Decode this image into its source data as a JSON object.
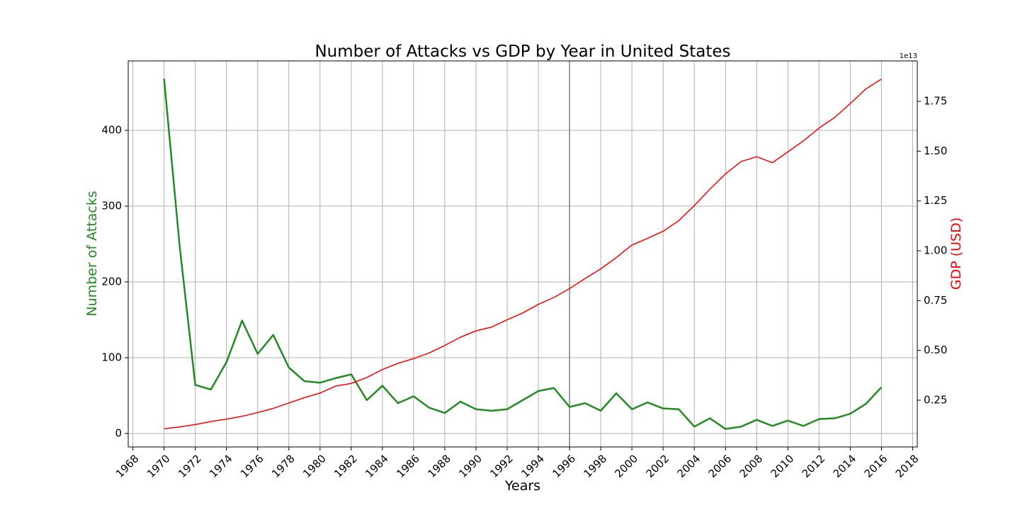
{
  "chart_data": {
    "type": "line",
    "title": "Number of Attacks vs GDP by Year in United States",
    "x_label": "Years",
    "y_label": "Number of Attacks",
    "y2_label": "GDP (USD)",
    "y2_offset": "1e13",
    "x": [
      1970,
      1971,
      1972,
      1973,
      1974,
      1975,
      1976,
      1977,
      1978,
      1979,
      1980,
      1981,
      1982,
      1983,
      1984,
      1985,
      1986,
      1987,
      1988,
      1989,
      1990,
      1991,
      1992,
      1993,
      1994,
      1995,
      1996,
      1997,
      1998,
      1999,
      2000,
      2001,
      2002,
      2003,
      2004,
      2005,
      2006,
      2007,
      2008,
      2009,
      2010,
      2011,
      2012,
      2013,
      2014,
      2015,
      2016
    ],
    "series": [
      {
        "color": "#228b22",
        "values": [
          468,
          247,
          64,
          58,
          94,
          149,
          105,
          130,
          87,
          69,
          67,
          73,
          78,
          44,
          63,
          40,
          49,
          34,
          27,
          42,
          32,
          30,
          32,
          44,
          56,
          60,
          35,
          40,
          30,
          53,
          32,
          41,
          33,
          32,
          9,
          20,
          6,
          9,
          18,
          10,
          17,
          10,
          19,
          20,
          26,
          39,
          61
        ]
      },
      {
        "color": "#ff0000",
        "axis": "y2",
        "values": [
          1070000000000.0,
          1160000000000.0,
          1280000000000.0,
          1430000000000.0,
          1550000000000.0,
          1690000000000.0,
          1880000000000.0,
          2090000000000.0,
          2360000000000.0,
          2630000000000.0,
          2860000000000.0,
          3210000000000.0,
          3340000000000.0,
          3640000000000.0,
          4040000000000.0,
          4350000000000.0,
          4590000000000.0,
          4870000000000.0,
          5250000000000.0,
          5660000000000.0,
          5980000000000.0,
          6170000000000.0,
          6540000000000.0,
          6880000000000.0,
          7310000000000.0,
          7660000000000.0,
          8100000000000.0,
          8610000000000.0,
          9090000000000.0,
          9660000000000.0,
          10290000000000.0,
          10620000000000.0,
          10980000000000.0,
          11510000000000.0,
          12270000000000.0,
          13090000000000.0,
          13860000000000.0,
          14480000000000.0,
          14720000000000.0,
          14420000000000.0,
          14960000000000.0,
          15520000000000.0,
          16160000000000.0,
          16690000000000.0,
          17390000000000.0,
          18120000000000.0,
          18620000000000.0
        ]
      }
    ],
    "xlim": [
      1967.7,
      2018.3
    ],
    "xticks": [
      1968,
      1970,
      1972,
      1974,
      1976,
      1978,
      1980,
      1982,
      1984,
      1986,
      1988,
      1990,
      1992,
      1994,
      1996,
      1998,
      2000,
      2002,
      2004,
      2006,
      2008,
      2010,
      2012,
      2014,
      2016,
      2018
    ],
    "ylim": [
      -17.8,
      491.6
    ],
    "yticks": [
      0,
      100,
      200,
      300,
      400
    ],
    "y2lim": [
      154000000000.0,
      19530000000000.0
    ],
    "y2ticks": [
      {
        "value": 2500000000000.0,
        "label": "0.25"
      },
      {
        "value": 5000000000000.0,
        "label": "0.50"
      },
      {
        "value": 7500000000000.0,
        "label": "0.75"
      },
      {
        "value": 10000000000000.0,
        "label": "1.00"
      },
      {
        "value": 12500000000000.0,
        "label": "1.25"
      },
      {
        "value": 15000000000000.0,
        "label": "1.50"
      },
      {
        "value": 17500000000000.0,
        "label": "1.75"
      }
    ],
    "vline": 1996,
    "vline_color": "#808080",
    "grid": true
  }
}
